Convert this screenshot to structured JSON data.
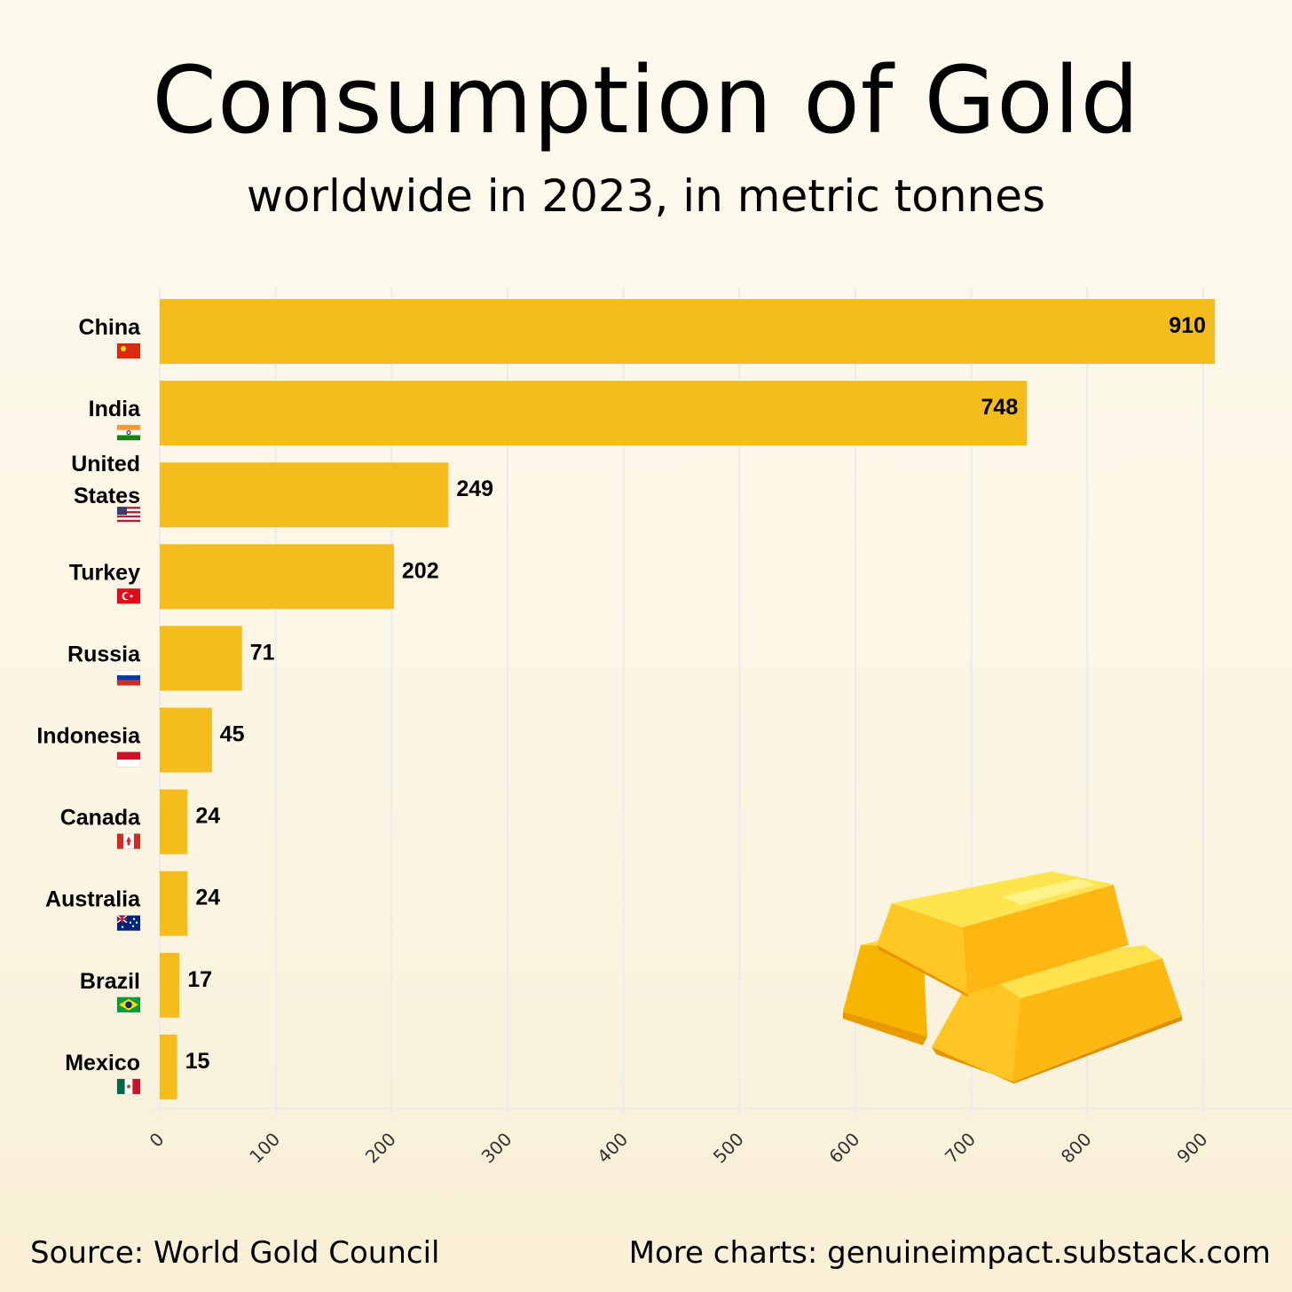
{
  "header": {
    "title": "Consumption of Gold",
    "subtitle": "worldwide in 2023, in metric tonnes"
  },
  "footer": {
    "source": "Source: World Gold Council",
    "more": "More charts: genuineimpact.substack.com"
  },
  "colors": {
    "bar": "#f4bc1c",
    "grid": "#ebebee",
    "text": "#000000"
  },
  "chart_data": {
    "type": "bar",
    "orientation": "horizontal",
    "title": "Consumption of Gold",
    "subtitle": "worldwide in 2023, in metric tonnes",
    "categories": [
      "China",
      "India",
      "United States",
      "Turkey",
      "Russia",
      "Indonesia",
      "Canada",
      "Australia",
      "Brazil",
      "Mexico"
    ],
    "values": [
      910,
      748,
      249,
      202,
      71,
      45,
      24,
      24,
      17,
      15
    ],
    "value_labels": [
      "910",
      "748",
      "249",
      "202",
      "71",
      "45",
      "24",
      "24",
      "17",
      "15"
    ],
    "flags": [
      "flag-china-icon",
      "flag-india-icon",
      "flag-usa-icon",
      "flag-turkey-icon",
      "flag-russia-icon",
      "flag-indonesia-icon",
      "flag-canada-icon",
      "flag-australia-icon",
      "flag-brazil-icon",
      "flag-mexico-icon"
    ],
    "xlim": [
      0,
      980
    ],
    "xticks": [
      0,
      100,
      200,
      300,
      400,
      500,
      600,
      700,
      800,
      900
    ],
    "xtick_labels": [
      "0",
      "100",
      "200",
      "300",
      "400",
      "500",
      "600",
      "700",
      "800",
      "900"
    ],
    "grid": true,
    "legend": "none",
    "decoration": "gold-bars-icon"
  }
}
